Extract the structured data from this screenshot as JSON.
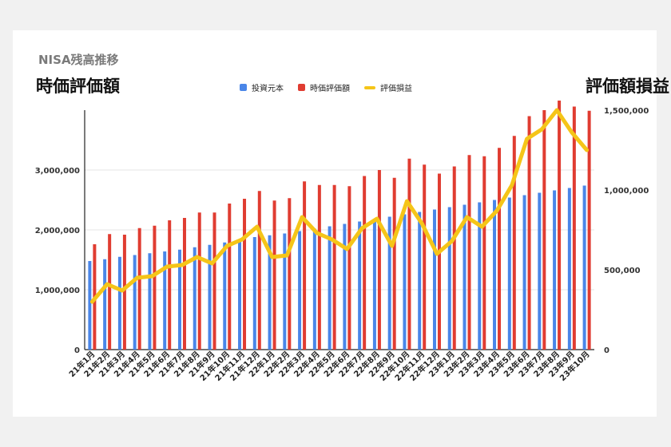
{
  "header": {
    "title": "NISA残高推移",
    "left_heading": "時価評価額",
    "right_heading": "評価額損益"
  },
  "legend": [
    {
      "label": "投資元本",
      "color": "#4a86e8",
      "kind": "box"
    },
    {
      "label": "時価評価額",
      "color": "#e03c31",
      "kind": "box"
    },
    {
      "label": "評価損益",
      "color": "#f5c518",
      "kind": "line"
    }
  ],
  "chart_data": {
    "type": "bar",
    "categories": [
      "21年1月",
      "21年2月",
      "21年3月",
      "21年4月",
      "21年5月",
      "21年6月",
      "21年7月",
      "21年8月",
      "21年9月",
      "21年10月",
      "21年11月",
      "21年12月",
      "22年1月",
      "22年2月",
      "22年3月",
      "22年4月",
      "22年5月",
      "22年6月",
      "22年7月",
      "22年8月",
      "22年9月",
      "22年10月",
      "22年11月",
      "22年12月",
      "23年1月",
      "23年2月",
      "23年3月",
      "23年4月",
      "23年5月",
      "23年6月",
      "23年7月",
      "23年8月",
      "23年9月",
      "23年10月"
    ],
    "series": [
      {
        "name": "投資元本",
        "color": "#4a86e8",
        "axis": "left",
        "values": [
          1480000,
          1510000,
          1550000,
          1580000,
          1610000,
          1640000,
          1670000,
          1710000,
          1750000,
          1790000,
          1830000,
          1880000,
          1910000,
          1940000,
          1980000,
          2020000,
          2060000,
          2100000,
          2140000,
          2180000,
          2220000,
          2260000,
          2300000,
          2340000,
          2380000,
          2420000,
          2460000,
          2500000,
          2540000,
          2580000,
          2620000,
          2660000,
          2700000,
          2740000
        ]
      },
      {
        "name": "時価評価額",
        "color": "#e03c31",
        "axis": "left",
        "values": [
          1760000,
          1930000,
          1920000,
          2030000,
          2070000,
          2160000,
          2200000,
          2290000,
          2290000,
          2440000,
          2520000,
          2650000,
          2490000,
          2530000,
          2810000,
          2750000,
          2750000,
          2730000,
          2900000,
          3000000,
          2870000,
          3190000,
          3090000,
          2940000,
          3060000,
          3250000,
          3230000,
          3370000,
          3570000,
          3900000,
          4000000,
          4160000,
          4060000,
          3990000
        ]
      },
      {
        "name": "評価損益",
        "color": "#f5c518",
        "axis": "right",
        "type": "line",
        "values": [
          300000,
          410000,
          370000,
          450000,
          460000,
          520000,
          530000,
          580000,
          540000,
          650000,
          690000,
          770000,
          580000,
          590000,
          830000,
          730000,
          690000,
          630000,
          760000,
          820000,
          650000,
          930000,
          790000,
          600000,
          680000,
          830000,
          770000,
          870000,
          1030000,
          1320000,
          1380000,
          1500000,
          1360000,
          1250000
        ]
      }
    ],
    "y_left": {
      "min": 0,
      "max": 4000000,
      "ticks": [
        "0",
        "1,000,000",
        "2,000,000",
        "3,000,000"
      ],
      "tick_values": [
        0,
        1000000,
        2000000,
        3000000
      ]
    },
    "y_right": {
      "min": 0,
      "max": 1500000,
      "ticks": [
        "0",
        "500,000",
        "1,000,000",
        "1,500,000"
      ],
      "tick_values": [
        0,
        500000,
        1000000,
        1500000
      ]
    },
    "grid": true,
    "legend_position": "top"
  }
}
